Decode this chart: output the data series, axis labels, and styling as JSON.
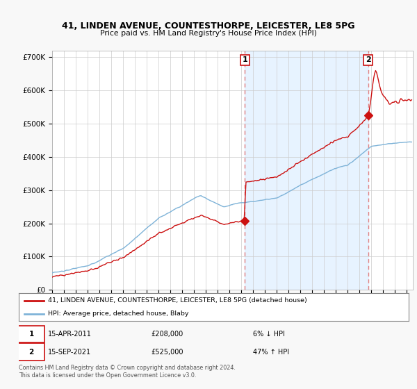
{
  "title": "41, LINDEN AVENUE, COUNTESTHORPE, LEICESTER, LE8 5PG",
  "subtitle": "Price paid vs. HM Land Registry's House Price Index (HPI)",
  "ylim": [
    0,
    720000
  ],
  "yticks": [
    0,
    100000,
    200000,
    300000,
    400000,
    500000,
    600000,
    700000
  ],
  "ytick_labels": [
    "£0",
    "£100K",
    "£200K",
    "£300K",
    "£400K",
    "£500K",
    "£600K",
    "£700K"
  ],
  "hpi_color": "#7eb3d8",
  "price_color": "#cc1111",
  "dashed_color": "#e08080",
  "shade_color": "#ddeeff",
  "background_color": "#f8f8f8",
  "plot_bg": "#ffffff",
  "legend_label_red": "41, LINDEN AVENUE, COUNTESTHORPE, LEICESTER, LE8 5PG (detached house)",
  "legend_label_blue": "HPI: Average price, detached house, Blaby",
  "annotation1_date": "15-APR-2011",
  "annotation1_price": "£208,000",
  "annotation1_hpi": "6% ↓ HPI",
  "annotation2_date": "15-SEP-2021",
  "annotation2_price": "£525,000",
  "annotation2_hpi": "47% ↑ HPI",
  "footnote": "Contains HM Land Registry data © Crown copyright and database right 2024.\nThis data is licensed under the Open Government Licence v3.0.",
  "sale1_x": 2011.29,
  "sale1_y": 208000,
  "sale2_x": 2021.71,
  "sale2_y": 525000,
  "xmin": 1995,
  "xmax": 2025.5
}
